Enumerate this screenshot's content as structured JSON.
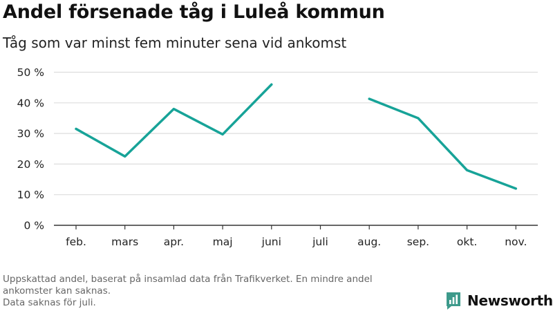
{
  "title": "Andel försenade tåg i Luleå kommun",
  "subtitle": "Tåg som var minst fem minuter sena vid ankomst",
  "footnote": {
    "line1": "Uppskattad andel, baserat på insamlad data från Trafikverket. En mindre andel",
    "line2": "ankomster kan saknas.",
    "line3": "Data saknas för juli."
  },
  "brand": {
    "name": "Newsworthy",
    "icon": "newsworthy-logo-icon"
  },
  "colors": {
    "series": "#17a398",
    "grid": "#dddddd",
    "axis": "#333333",
    "footnote": "#666666",
    "brand": "#3d9a8b"
  },
  "chart_data": {
    "type": "line",
    "categories": [
      "feb.",
      "mars",
      "apr.",
      "maj",
      "juni",
      "juli",
      "aug.",
      "sep.",
      "okt.",
      "nov."
    ],
    "series": [
      {
        "values": [
          31.5,
          22.5,
          38,
          29.7,
          46,
          null,
          41.3,
          35,
          18,
          12
        ]
      }
    ],
    "ylim": [
      0,
      50
    ],
    "yticks": [
      0,
      10,
      20,
      30,
      40,
      50
    ],
    "ytick_labels": [
      "0 %",
      "10 %",
      "20 %",
      "30 %",
      "40 %",
      "50 %"
    ],
    "grid": true,
    "legend": "none"
  }
}
